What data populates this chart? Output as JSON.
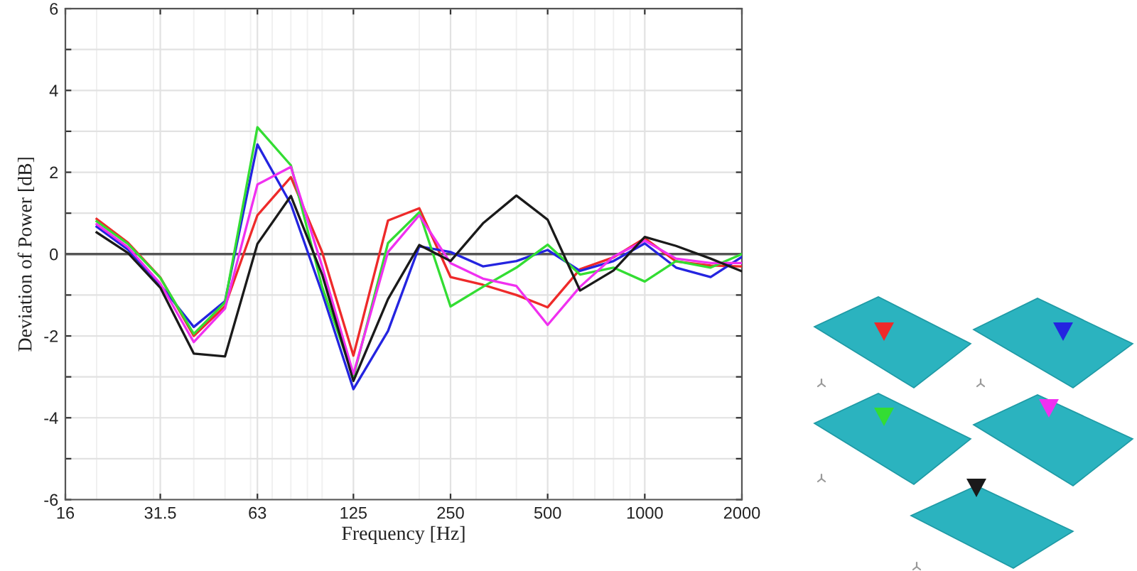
{
  "chart_data": {
    "type": "line",
    "xlabel": "Frequency [Hz]",
    "ylabel": "Deviation of Power [dB]",
    "x": [
      20,
      25,
      31.5,
      40,
      50,
      63,
      80,
      100,
      125,
      160,
      200,
      250,
      315,
      400,
      500,
      630,
      800,
      1000,
      1250,
      1600,
      2000
    ],
    "series": [
      {
        "color": "#ee2a2a",
        "values": [
          0.86,
          0.28,
          -0.57,
          -2.0,
          -1.27,
          0.95,
          1.88,
          0.05,
          -2.48,
          0.82,
          1.12,
          -0.56,
          -0.75,
          -1.0,
          -1.3,
          -0.37,
          -0.08,
          0.39,
          -0.18,
          -0.28,
          -0.3
        ]
      },
      {
        "color": "#2424e0",
        "values": [
          0.67,
          0.11,
          -0.75,
          -1.78,
          -1.15,
          2.68,
          1.22,
          -0.95,
          -3.3,
          -1.88,
          0.19,
          0.05,
          -0.3,
          -0.17,
          0.1,
          -0.41,
          -0.17,
          0.26,
          -0.33,
          -0.56,
          -0.07
        ]
      },
      {
        "color": "#33dd33",
        "values": [
          0.8,
          0.25,
          -0.58,
          -1.95,
          -1.18,
          3.1,
          2.17,
          -0.8,
          -3.0,
          0.27,
          1.02,
          -1.28,
          -0.8,
          -0.33,
          0.23,
          -0.5,
          -0.33,
          -0.67,
          -0.17,
          -0.33,
          0.0
        ]
      },
      {
        "color": "#f030f0",
        "values": [
          0.73,
          0.17,
          -0.72,
          -2.15,
          -1.33,
          1.7,
          2.13,
          -0.3,
          -2.93,
          0.05,
          0.95,
          -0.22,
          -0.6,
          -0.78,
          -1.73,
          -0.8,
          -0.06,
          0.33,
          -0.11,
          -0.22,
          -0.22
        ]
      },
      {
        "color": "#1a1a1a",
        "values": [
          0.53,
          0.03,
          -0.82,
          -2.43,
          -2.5,
          0.25,
          1.42,
          -0.5,
          -3.1,
          -1.1,
          0.22,
          -0.17,
          0.75,
          1.43,
          0.84,
          -0.89,
          -0.4,
          0.42,
          0.2,
          -0.11,
          -0.42
        ]
      }
    ],
    "log": "x",
    "xlim": [
      16,
      2000
    ],
    "xticks": [
      16,
      31.5,
      63,
      125,
      250,
      500,
      1000,
      2000
    ],
    "ylim": [
      -6,
      6
    ],
    "yticks": [
      -6,
      {
        "value": -5,
        "label": null
      },
      -4,
      {
        "value": -3,
        "label": null
      },
      -2,
      {
        "value": -1,
        "label": null
      },
      0,
      {
        "value": 1,
        "label": null
      },
      2,
      {
        "value": 3,
        "label": null
      },
      4,
      {
        "value": 5,
        "label": null
      },
      6
    ],
    "ref_lines": [
      {
        "axis": "y",
        "value": 0,
        "color": "#555555"
      }
    ],
    "grid": true,
    "marker": "none",
    "line_style": "solid"
  }
}
